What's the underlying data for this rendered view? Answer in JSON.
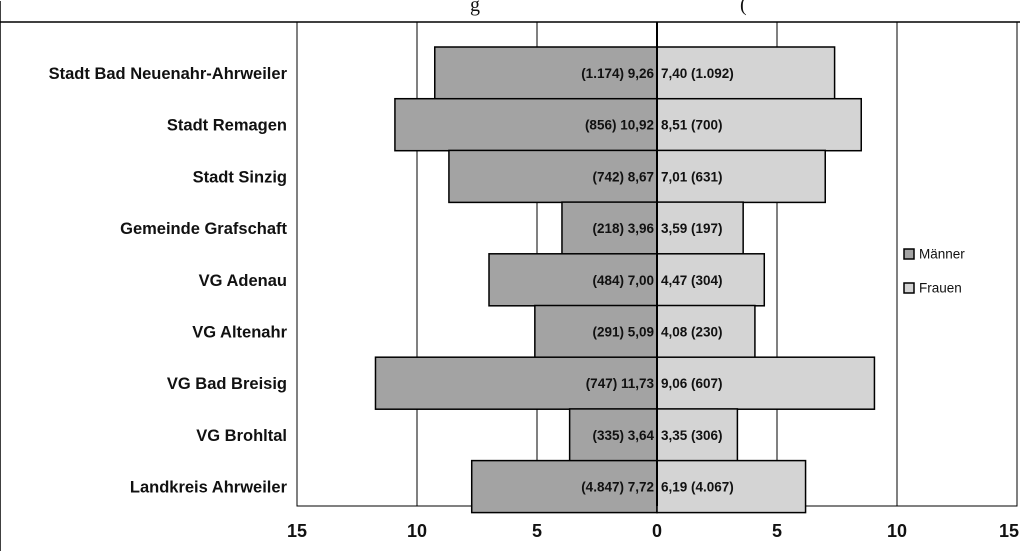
{
  "header_fragment": "g                                                    (",
  "chart_data": {
    "type": "bar",
    "orientation": "horizontal-diverging",
    "categories": [
      "Stadt Bad Neuenahr-Ahrweiler",
      "Stadt Remagen",
      "Stadt Sinzig",
      "Gemeinde Grafschaft",
      "VG Adenau",
      "VG Altenahr",
      "VG Bad Breisig",
      "VG Brohltal",
      "Landkreis Ahrweiler"
    ],
    "series": [
      {
        "name": "Männer",
        "values": [
          9.26,
          10.92,
          8.67,
          3.96,
          7.0,
          5.09,
          11.73,
          3.64,
          7.72
        ],
        "labels": [
          "(1.174) 9,26",
          "(856) 10,92",
          "(742) 8,67",
          "(218) 3,96",
          "(484) 7,00",
          "(291) 5,09",
          "(747) 11,73",
          "(335) 3,64",
          "(4.847) 7,72"
        ],
        "color": "#a3a3a3"
      },
      {
        "name": "Frauen",
        "values": [
          7.4,
          8.51,
          7.01,
          3.59,
          4.47,
          4.08,
          9.06,
          3.35,
          6.19
        ],
        "labels": [
          "7,40 (1.092)",
          "8,51 (700)",
          "7,01 (631)",
          "3,59 (197)",
          "4,47 (304)",
          "4,08 (230)",
          "9,06 (607)",
          "3,35 (306)",
          "6,19 (4.067)"
        ],
        "color": "#d4d4d4"
      }
    ],
    "xlim": [
      -15,
      15
    ],
    "xticks": [
      "15",
      "10",
      "5",
      "0",
      "5",
      "10",
      "15"
    ],
    "grid": true,
    "legend_position": "right"
  }
}
